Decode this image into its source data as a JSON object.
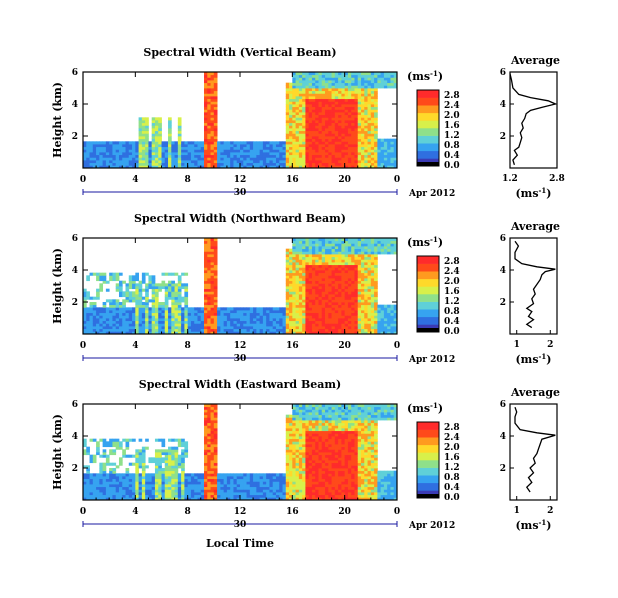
{
  "figure": {
    "xlabel": "Local Time",
    "date_label": "Apr 2012",
    "day_label": "30",
    "colorbar_unit": "(ms",
    "colorbar_unit_exp": "-1",
    "colorbar_unit_close": ")",
    "avg_xunit": "(ms",
    "avg_xunit_exp": "-1",
    "avg_xunit_close": ")",
    "colors": {
      "scale": [
        "#3b3bb5",
        "#2f6fe0",
        "#36a3f0",
        "#5fd0d8",
        "#8fe08a",
        "#d8f04a",
        "#ffd92a",
        "#ff9a1f",
        "#ff4a1a",
        "#ff2b2b"
      ],
      "background": "#ffffff",
      "axis": "#000000",
      "day_marker": "#1a1aa0"
    }
  },
  "chart_data": [
    {
      "type": "heatmap",
      "title": "Spectral Width (Vertical Beam)",
      "ylabel": "Height (km)",
      "xlim": [
        0,
        24
      ],
      "ylim": [
        0,
        6
      ],
      "xticks": [
        "0",
        "4",
        "8",
        "12",
        "16",
        "20",
        "0"
      ],
      "yticks": [
        "2",
        "4",
        "6"
      ],
      "colorbar": {
        "ticks": [
          "0.0",
          "0.4",
          "0.8",
          "1.2",
          "1.6",
          "2.0",
          "2.4",
          "2.8"
        ],
        "range": [
          0,
          2.8
        ]
      },
      "avg_title": "Average",
      "avg_xticks": [
        "1.2",
        "2.8"
      ],
      "avg_xlim": [
        1.2,
        2.8
      ],
      "avg_yticks": [
        "2",
        "4",
        "6"
      ],
      "avg_profile": [
        [
          1.35,
          0.2
        ],
        [
          1.3,
          0.5
        ],
        [
          1.45,
          0.8
        ],
        [
          1.35,
          1.1
        ],
        [
          1.5,
          1.3
        ],
        [
          1.55,
          1.6
        ],
        [
          1.6,
          1.9
        ],
        [
          1.55,
          2.2
        ],
        [
          1.65,
          2.5
        ],
        [
          1.6,
          2.8
        ],
        [
          1.7,
          3.1
        ],
        [
          1.75,
          3.4
        ],
        [
          1.9,
          3.6
        ],
        [
          2.3,
          3.8
        ],
        [
          2.75,
          4.0
        ],
        [
          2.5,
          4.2
        ],
        [
          1.9,
          4.4
        ],
        [
          1.5,
          4.6
        ],
        [
          1.3,
          5.0
        ],
        [
          1.25,
          5.5
        ],
        [
          1.2,
          5.9
        ]
      ]
    },
    {
      "type": "heatmap",
      "title": "Spectral Width (Northward Beam)",
      "ylabel": "Height (km)",
      "xlim": [
        0,
        24
      ],
      "ylim": [
        0,
        6
      ],
      "xticks": [
        "0",
        "4",
        "8",
        "12",
        "16",
        "20",
        "0"
      ],
      "yticks": [
        "2",
        "4",
        "6"
      ],
      "colorbar": {
        "ticks": [
          "0.0",
          "0.4",
          "0.8",
          "1.2",
          "1.6",
          "2.0",
          "2.4",
          "2.8"
        ],
        "range": [
          0,
          2.8
        ]
      },
      "avg_title": "Average",
      "avg_xticks": [
        "1",
        "2"
      ],
      "avg_xlim": [
        0.8,
        2.2
      ],
      "avg_yticks": [
        "2",
        "4",
        "6"
      ],
      "avg_profile": [
        [
          1.45,
          0.4
        ],
        [
          1.3,
          0.6
        ],
        [
          1.5,
          0.9
        ],
        [
          1.35,
          1.1
        ],
        [
          1.45,
          1.4
        ],
        [
          1.3,
          1.6
        ],
        [
          1.5,
          1.9
        ],
        [
          1.45,
          2.2
        ],
        [
          1.55,
          2.5
        ],
        [
          1.5,
          2.8
        ],
        [
          1.6,
          3.1
        ],
        [
          1.7,
          3.4
        ],
        [
          1.75,
          3.7
        ],
        [
          1.85,
          3.9
        ],
        [
          2.15,
          4.05
        ],
        [
          1.6,
          4.2
        ],
        [
          1.15,
          4.4
        ],
        [
          0.95,
          4.7
        ],
        [
          0.95,
          5.1
        ],
        [
          1.05,
          5.5
        ],
        [
          0.95,
          5.8
        ]
      ]
    },
    {
      "type": "heatmap",
      "title": "Spectral Width (Eastward Beam)",
      "ylabel": "Height (km)",
      "xlim": [
        0,
        24
      ],
      "ylim": [
        0,
        6
      ],
      "xticks": [
        "0",
        "4",
        "8",
        "12",
        "16",
        "20",
        "0"
      ],
      "yticks": [
        "2",
        "4",
        "6"
      ],
      "colorbar": {
        "ticks": [
          "0.0",
          "0.4",
          "0.8",
          "1.2",
          "1.6",
          "2.0",
          "2.4",
          "2.8"
        ],
        "range": [
          0,
          2.8
        ]
      },
      "avg_title": "Average",
      "avg_xticks": [
        "1",
        "2"
      ],
      "avg_xlim": [
        0.8,
        2.2
      ],
      "avg_yticks": [
        "2",
        "4",
        "6"
      ],
      "avg_profile": [
        [
          1.4,
          0.5
        ],
        [
          1.3,
          0.8
        ],
        [
          1.45,
          1.1
        ],
        [
          1.35,
          1.4
        ],
        [
          1.5,
          1.7
        ],
        [
          1.4,
          2.0
        ],
        [
          1.55,
          2.3
        ],
        [
          1.5,
          2.6
        ],
        [
          1.6,
          2.9
        ],
        [
          1.65,
          3.2
        ],
        [
          1.7,
          3.5
        ],
        [
          1.75,
          3.8
        ],
        [
          2.15,
          4.05
        ],
        [
          1.6,
          4.2
        ],
        [
          1.1,
          4.4
        ],
        [
          0.95,
          4.8
        ],
        [
          0.95,
          5.2
        ],
        [
          1.0,
          5.5
        ],
        [
          0.95,
          5.8
        ]
      ]
    }
  ]
}
